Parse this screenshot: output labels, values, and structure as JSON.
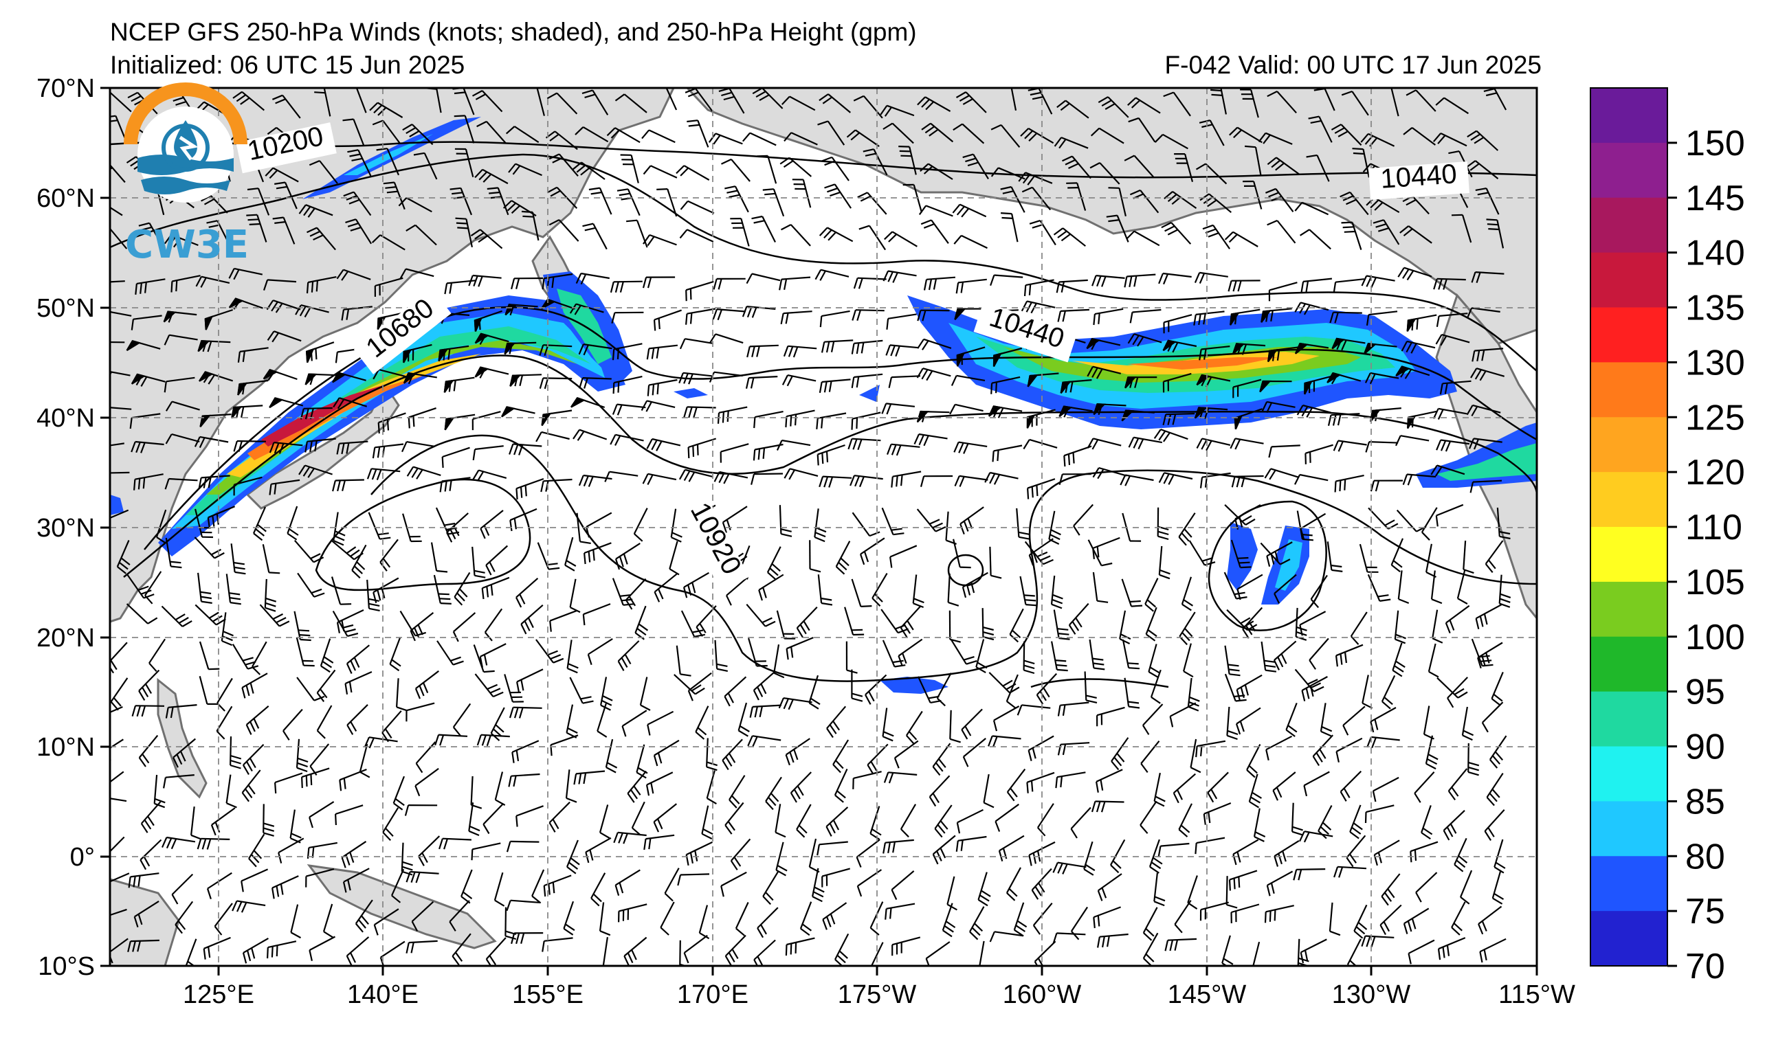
{
  "title": {
    "line1": "NCEP GFS 250-hPa Winds (knots; shaded), and 250-hPa Height (gpm)",
    "line2": "Initialized: 06 UTC 15 Jun 2025",
    "valid": "F-042  Valid: 00 UTC 17 Jun 2025"
  },
  "axes": {
    "lat_labels": [
      "70°N",
      "60°N",
      "50°N",
      "40°N",
      "30°N",
      "20°N",
      "10°N",
      "0°",
      "10°S"
    ],
    "lon_labels": [
      "125°E",
      "140°E",
      "155°E",
      "170°E",
      "175°W",
      "160°W",
      "145°W",
      "130°W",
      "115°W"
    ]
  },
  "colorbar": {
    "labels": [
      "150",
      "145",
      "140",
      "135",
      "130",
      "125",
      "120",
      "110",
      "105",
      "100",
      "95",
      "90",
      "85",
      "80",
      "75",
      "70"
    ],
    "colors": [
      "#6a1b9a",
      "#8e1f8f",
      "#a8185e",
      "#c8183c",
      "#ff2020",
      "#ff7a1a",
      "#ffa51f",
      "#ffcc1f",
      "#ffff20",
      "#7acc1f",
      "#1fb82a",
      "#1fd9a0",
      "#1ff2f0",
      "#1fc8ff",
      "#1f55ff",
      "#2222d0"
    ]
  },
  "contour_labels": [
    "10200",
    "10440",
    "10680",
    "10440",
    "10920"
  ],
  "logo": {
    "text": "CW3E"
  },
  "colors": {
    "land": "#dcdcdc",
    "coast": "#707070",
    "grid": "#888888"
  }
}
